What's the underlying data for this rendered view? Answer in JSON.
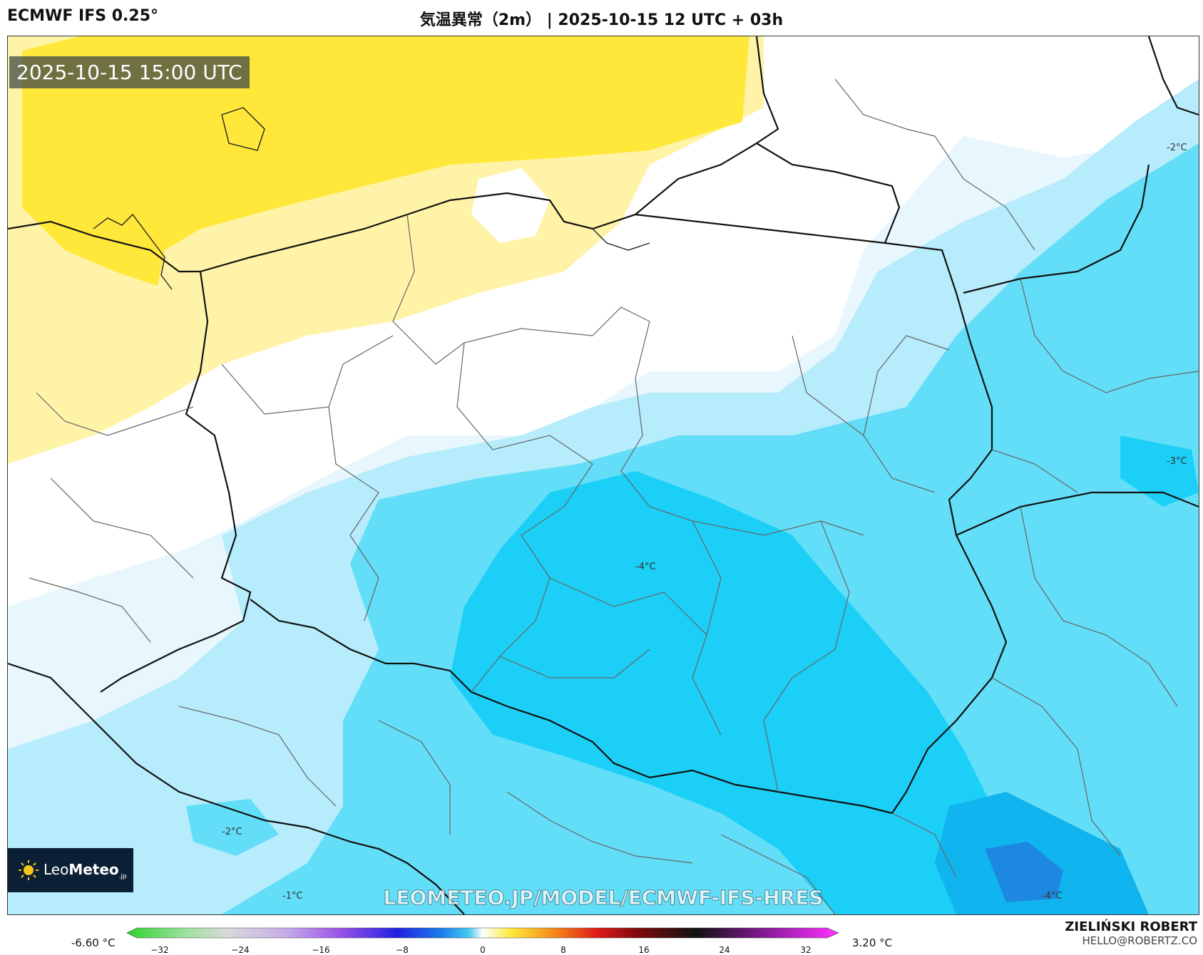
{
  "header": {
    "model_label": "ECMWF IFS 0.25°",
    "title": "気温異常（2m） | 2025-10-15 12 UTC + 03h"
  },
  "map": {
    "timestamp": "2025-10-15 15:00 UTC",
    "watermark": "LEOMETEO.JP/MODEL/ECMWF-IFS-HRES",
    "logo": {
      "brand_light": "Leo",
      "brand_bold": "Meteo",
      "suffix": ".jp",
      "icon": "sun-icon"
    },
    "contour_labels": [
      "-2°C",
      "-3°C",
      "-4°C",
      "-2°C",
      "-1°C",
      "-4°C"
    ],
    "colors": {
      "warm_strong": "#ffe83a",
      "warm_light": "#fff3a8",
      "neutral": "#ffffff",
      "cold_0": "#e8f6fd",
      "cold_1": "#b6ecfb",
      "cold_2": "#63def8",
      "cold_3": "#1ccff6",
      "cold_4": "#10b4ee",
      "cold_5": "#1e88e0"
    }
  },
  "legend": {
    "min_label": "-6.60 °C",
    "max_label": "3.20 °C",
    "ticks": [
      "−32",
      "−24",
      "−16",
      "−8",
      "0",
      "8",
      "16",
      "24",
      "32"
    ]
  },
  "author": {
    "name": "ZIELIŃSKI ROBERT",
    "email": "HELLO@ROBERTZ.CO"
  }
}
